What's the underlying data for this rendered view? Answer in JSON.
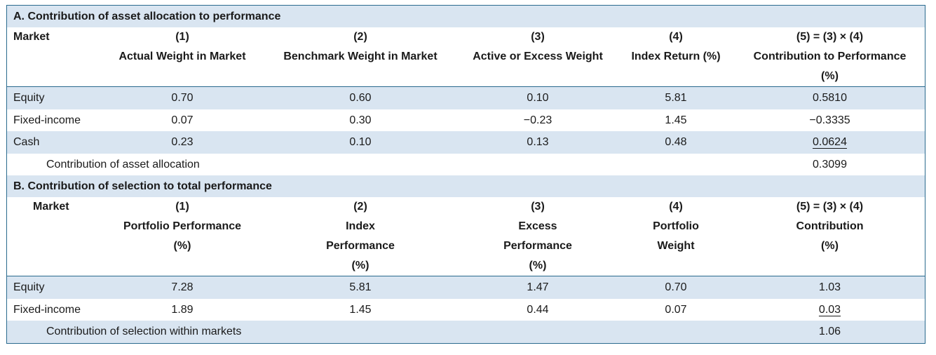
{
  "sectionA": {
    "title": "A. Contribution of asset allocation to performance",
    "headers": [
      [
        "Market",
        "(1)",
        "(2)",
        "(3)",
        "(4)",
        "(5) = (3) × (4)"
      ],
      [
        "",
        "Actual Weight in Market",
        "Benchmark Weight in Market",
        "Active or Excess Weight",
        "Index Return (%)",
        "Contribution to Performance"
      ],
      [
        "",
        "",
        "",
        "",
        "",
        "(%)"
      ]
    ],
    "rows": [
      [
        "Equity",
        "0.70",
        "0.60",
        "0.10",
        "5.81",
        "0.5810"
      ],
      [
        "Fixed-income",
        "0.07",
        "0.30",
        "−0.23",
        "1.45",
        "−0.3335"
      ],
      [
        "Cash",
        "0.23",
        "0.10",
        "0.13",
        "0.48",
        "0.0624"
      ]
    ],
    "total_label": "Contribution of asset allocation",
    "total_value": "0.3099"
  },
  "sectionB": {
    "title": "B. Contribution of selection to total performance",
    "headers": [
      [
        "Market",
        "(1)",
        "(2)",
        "(3)",
        "(4)",
        "(5) = (3) × (4)"
      ],
      [
        "",
        "Portfolio Performance",
        "Index",
        "Excess",
        "Portfolio",
        "Contribution"
      ],
      [
        "",
        "(%)",
        "Performance",
        "Performance",
        "Weight",
        "(%)"
      ],
      [
        "",
        "",
        "(%)",
        "(%)",
        "",
        ""
      ]
    ],
    "rows": [
      [
        "Equity",
        "7.28",
        "5.81",
        "1.47",
        "0.70",
        "1.03"
      ],
      [
        "Fixed-income",
        "1.89",
        "1.45",
        "0.44",
        "0.07",
        "0.03"
      ]
    ],
    "total_label": "Contribution of selection within markets",
    "total_value": "1.06"
  },
  "colors": {
    "shade": "#d9e5f1",
    "border": "#2a6a8e"
  }
}
